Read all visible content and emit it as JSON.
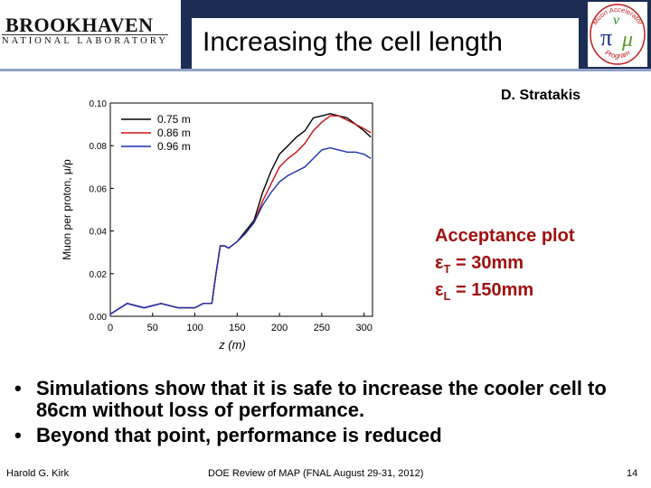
{
  "header": {
    "logo_line1": "BROOKHAVEN",
    "logo_line2": "NATIONAL LABORATORY",
    "title": "Increasing the cell length",
    "mc_logo_text": [
      "Muon Accelerator",
      "Program"
    ],
    "mc_logo_glyph": "π",
    "mc_logo_v": "ν",
    "mc_logo_mu": "μ"
  },
  "author": "D. Stratakis",
  "acceptance": {
    "heading": "Acceptance plot",
    "eps_t_prefix": "ε",
    "eps_t_sub": "T",
    "eps_t_value": " = 30mm",
    "eps_l_prefix": "ε",
    "eps_l_sub": "L",
    "eps_l_value": " = 150mm"
  },
  "chart_data": {
    "type": "line",
    "title": "",
    "xlabel": "z (m)",
    "ylabel": "Muon per proton, μ/p",
    "xlim": [
      0,
      310
    ],
    "ylim": [
      0.0,
      0.1
    ],
    "xticks": [
      "0",
      "50",
      "100",
      "150",
      "200",
      "250",
      "300"
    ],
    "yticks": [
      "0.00",
      "0.02",
      "0.04",
      "0.06",
      "0.08",
      "0.10"
    ],
    "legend_position": "top-left",
    "series": [
      {
        "name": "0.75 m",
        "color": "#000000",
        "x": [
          0,
          20,
          40,
          60,
          80,
          100,
          110,
          120,
          125,
          130,
          135,
          140,
          150,
          160,
          170,
          180,
          190,
          200,
          210,
          220,
          230,
          240,
          250,
          260,
          270,
          280,
          290,
          300,
          308
        ],
        "y": [
          0.001,
          0.006,
          0.004,
          0.006,
          0.004,
          0.004,
          0.006,
          0.006,
          0.02,
          0.033,
          0.033,
          0.032,
          0.035,
          0.04,
          0.045,
          0.058,
          0.068,
          0.076,
          0.08,
          0.084,
          0.087,
          0.093,
          0.094,
          0.095,
          0.094,
          0.093,
          0.09,
          0.087,
          0.084
        ]
      },
      {
        "name": "0.86 m",
        "color": "#cc1111",
        "x": [
          0,
          20,
          40,
          60,
          80,
          100,
          110,
          120,
          125,
          130,
          135,
          140,
          150,
          160,
          170,
          180,
          190,
          200,
          210,
          220,
          230,
          240,
          250,
          260,
          270,
          280,
          290,
          300,
          308
        ],
        "y": [
          0.001,
          0.006,
          0.004,
          0.006,
          0.004,
          0.004,
          0.006,
          0.006,
          0.02,
          0.033,
          0.033,
          0.032,
          0.035,
          0.039,
          0.044,
          0.054,
          0.062,
          0.07,
          0.074,
          0.077,
          0.081,
          0.087,
          0.091,
          0.094,
          0.094,
          0.092,
          0.09,
          0.088,
          0.086
        ]
      },
      {
        "name": "0.96 m",
        "color": "#1a2fb0",
        "x": [
          0,
          20,
          40,
          60,
          80,
          100,
          110,
          120,
          125,
          130,
          135,
          140,
          150,
          160,
          170,
          180,
          190,
          200,
          210,
          220,
          230,
          240,
          250,
          260,
          270,
          280,
          290,
          300,
          308
        ],
        "y": [
          0.001,
          0.006,
          0.004,
          0.006,
          0.004,
          0.004,
          0.006,
          0.006,
          0.02,
          0.033,
          0.033,
          0.032,
          0.035,
          0.039,
          0.044,
          0.052,
          0.058,
          0.063,
          0.066,
          0.068,
          0.07,
          0.074,
          0.078,
          0.079,
          0.078,
          0.077,
          0.077,
          0.076,
          0.074
        ]
      }
    ]
  },
  "bullets": [
    "Simulations show that it is safe to increase the cooler cell to 86cm without loss of performance.",
    "Beyond that point, performance is reduced"
  ],
  "bullet_symbol": "•",
  "footer": {
    "left": "Harold G. Kirk",
    "center": "DOE Review of MAP (FNAL August 29-31, 2012)",
    "page": "14"
  }
}
